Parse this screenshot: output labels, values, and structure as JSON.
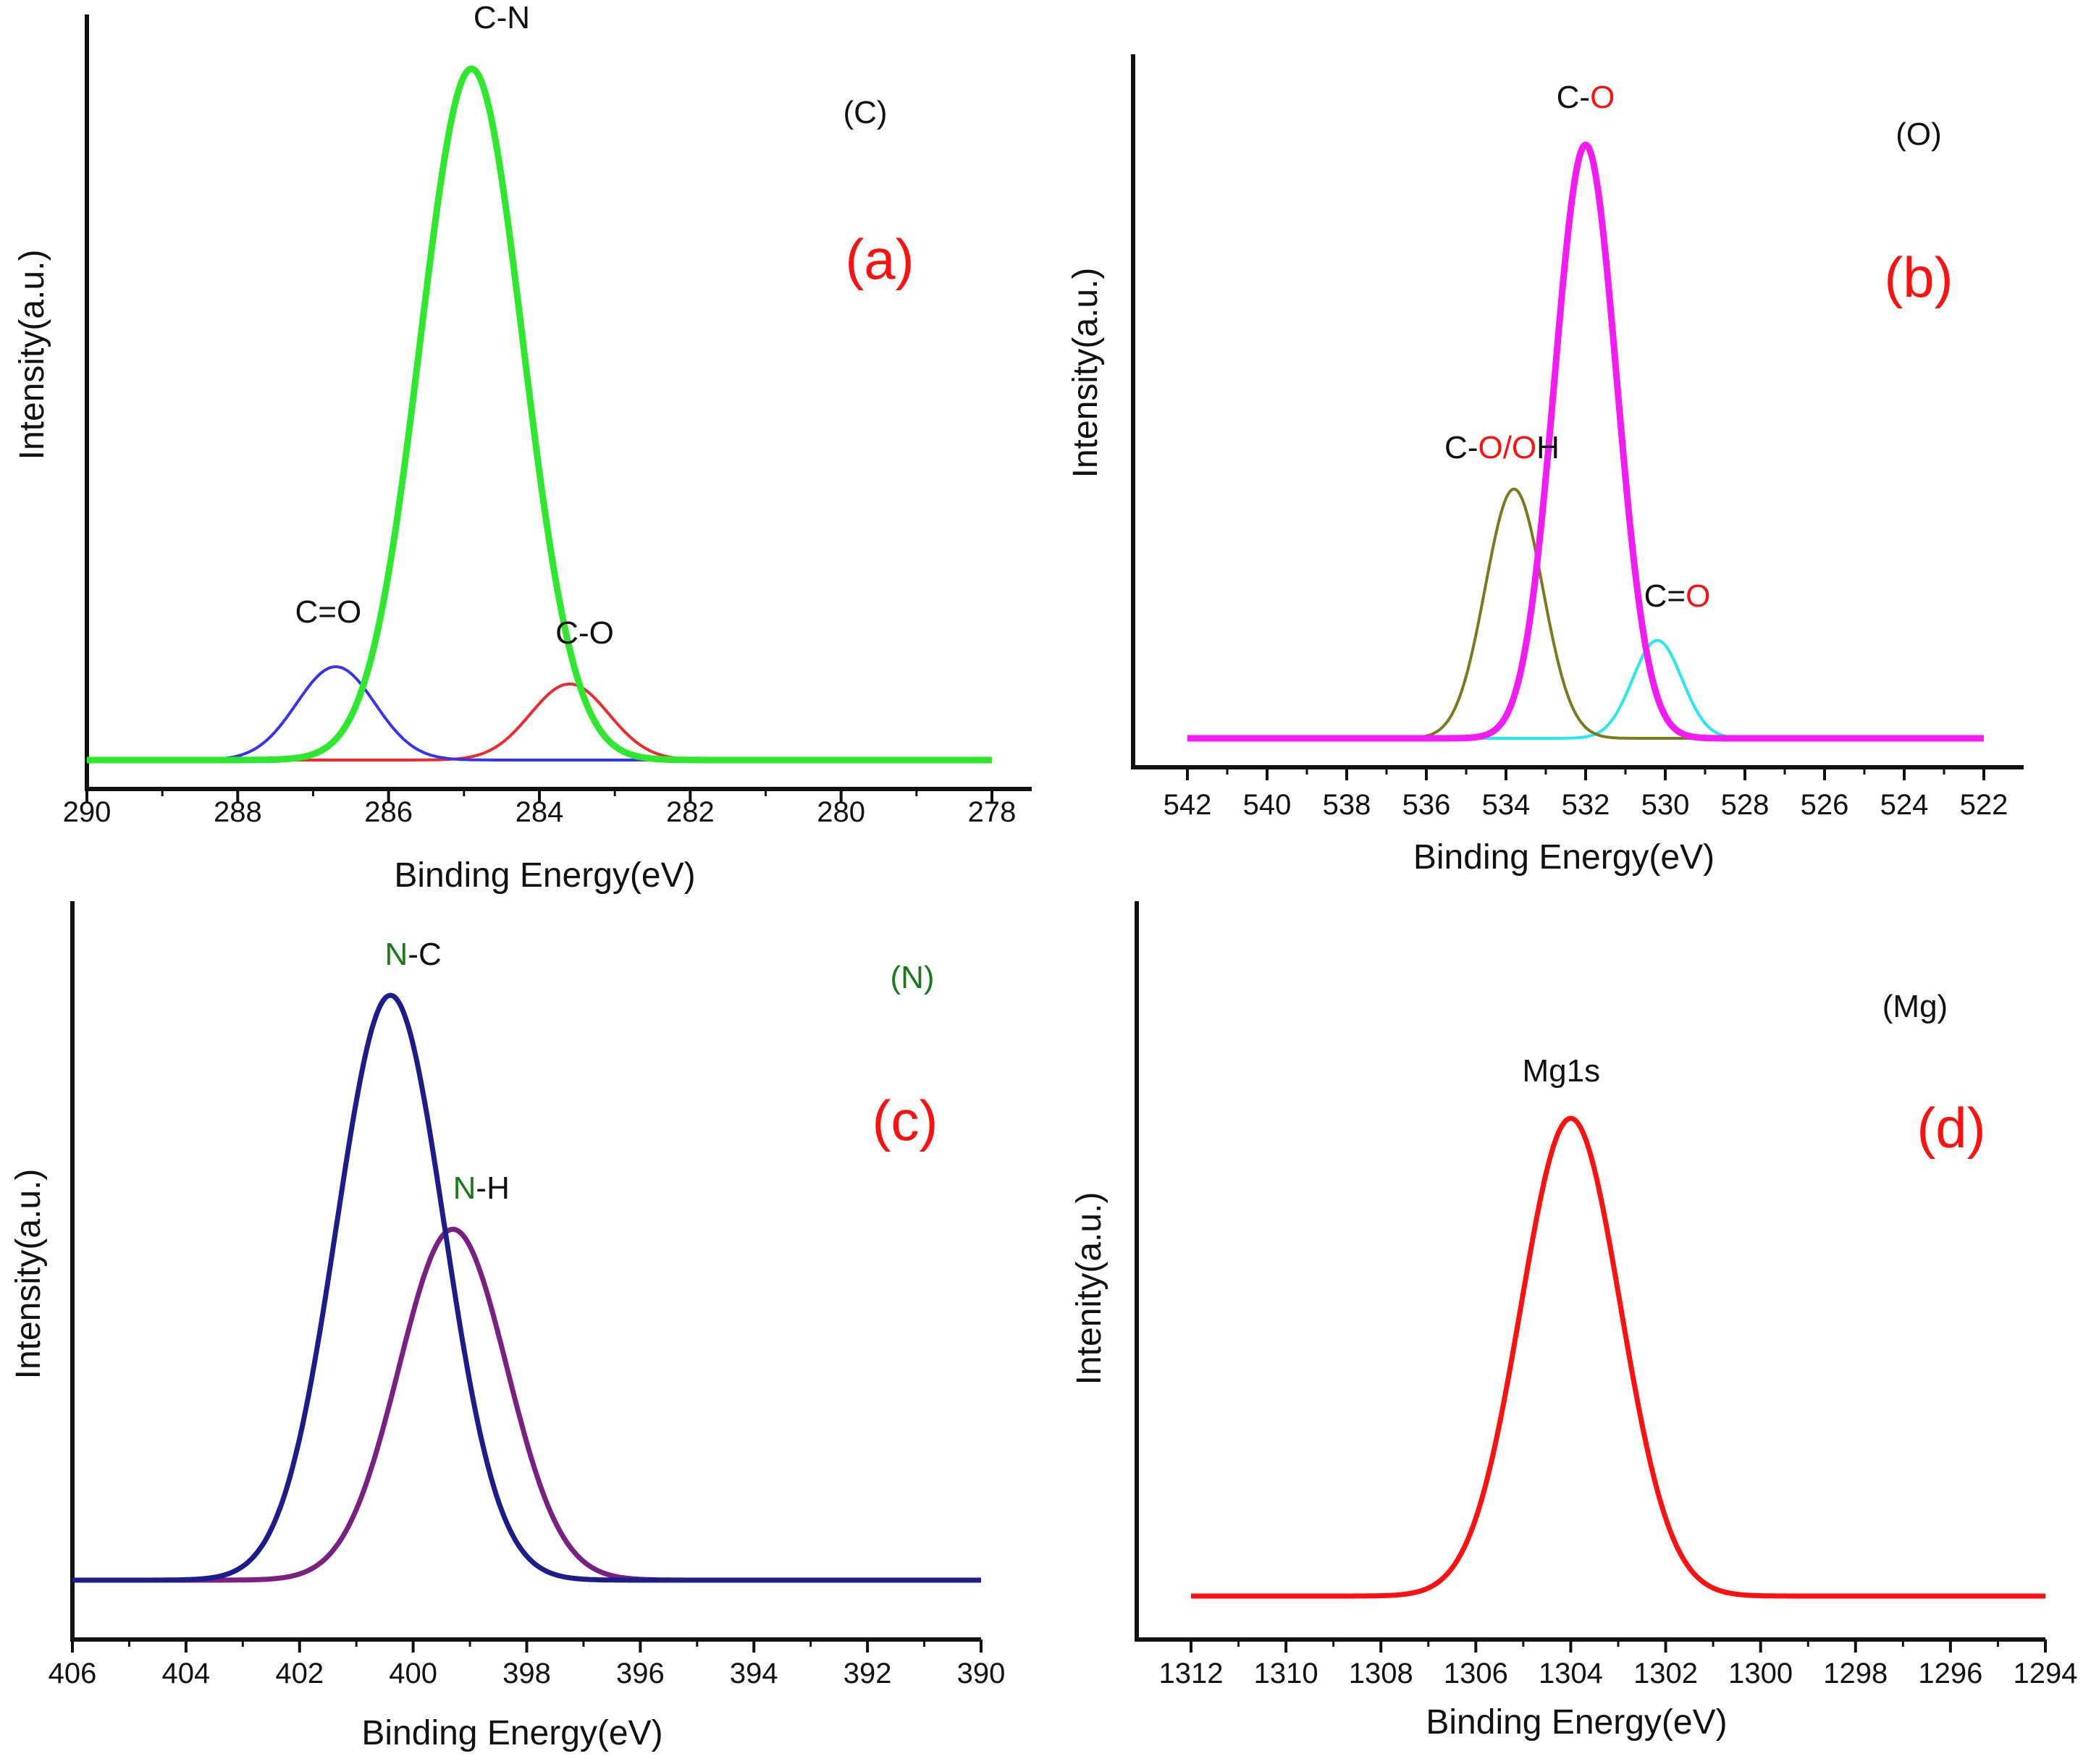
{
  "colors": {
    "axis": "#111111",
    "red_label": "#ff1010",
    "green_label": "#1a7a1a"
  },
  "chart_data": [
    {
      "panel": "a",
      "panel_label": "(a)",
      "element_label": "(C)",
      "type": "line",
      "xlabel": "Binding Energy(eV)",
      "ylabel": "Intensity(a.u.)",
      "xlim": [
        290,
        278
      ],
      "ylim": [
        0,
        1.06
      ],
      "x_ticks": [
        "290",
        "288",
        "286",
        "284",
        "282",
        "280",
        "278"
      ],
      "grid": false,
      "series": [
        {
          "name": "C-N",
          "color": "#2ee82e",
          "width": 9,
          "center": 284.9,
          "sigma": 0.68,
          "amplitude": 1.0
        },
        {
          "name": "C=O",
          "color": "#3535ee",
          "width": 4,
          "center": 286.7,
          "sigma": 0.52,
          "amplitude": 0.135
        },
        {
          "name": "C-O",
          "color": "#ee2a2a",
          "width": 4,
          "center": 283.6,
          "sigma": 0.52,
          "amplitude": 0.11
        }
      ],
      "annotations": [
        {
          "parts": [
            {
              "text": "C-N",
              "color": "#111111"
            }
          ],
          "x": 284.5,
          "y": 1.04
        },
        {
          "parts": [
            {
              "text": "C=O",
              "color": "#111111"
            }
          ],
          "x": 286.8,
          "y": 0.18
        },
        {
          "parts": [
            {
              "text": "C-O",
              "color": "#111111"
            }
          ],
          "x": 283.4,
          "y": 0.15
        }
      ]
    },
    {
      "panel": "b",
      "panel_label": "(b)",
      "element_label": "(O)",
      "type": "line",
      "xlabel": "Binding Energy(eV)",
      "ylabel": "Intensity(a.u.)",
      "xlim": [
        543,
        522
      ],
      "ylim": [
        0,
        1.2
      ],
      "x_ticks": [
        "542",
        "540",
        "538",
        "536",
        "534",
        "532",
        "530",
        "528",
        "526",
        "524",
        "522"
      ],
      "grid": false,
      "series": [
        {
          "name": "C-O",
          "color": "#f21bf2",
          "width": 9,
          "center": 532.0,
          "sigma": 0.78,
          "amplitude": 1.0
        },
        {
          "name": "C-O/OH",
          "color": "#7a7a1e",
          "width": 4,
          "center": 533.8,
          "sigma": 0.72,
          "amplitude": 0.42
        },
        {
          "name": "C=O",
          "color": "#25e8f0",
          "width": 4,
          "center": 530.2,
          "sigma": 0.62,
          "amplitude": 0.165
        }
      ],
      "annotations": [
        {
          "parts": [
            {
              "text": "C-",
              "color": "#111111"
            },
            {
              "text": "O",
              "color": "#ff1010"
            }
          ],
          "x": 532.0,
          "y": 1.04
        },
        {
          "parts": [
            {
              "text": "C-",
              "color": "#111111"
            },
            {
              "text": "O/O",
              "color": "#ff1010"
            },
            {
              "text": "H",
              "color": "#111111"
            }
          ],
          "x": 534.1,
          "y": 0.45
        },
        {
          "parts": [
            {
              "text": "C=",
              "color": "#111111"
            },
            {
              "text": "O",
              "color": "#ff1010"
            }
          ],
          "x": 529.7,
          "y": 0.2
        }
      ]
    },
    {
      "panel": "c",
      "panel_label": "(c)",
      "element_label_parts": [
        {
          "text": "(",
          "color": "#1a7a1a"
        },
        {
          "text": "N",
          "color": "#1a7a1a"
        },
        {
          "text": ")",
          "color": "#1a7a1a"
        }
      ],
      "type": "line",
      "xlabel": "Binding Energy(eV)",
      "ylabel": "Intensity(a.u.)",
      "xlim": [
        406,
        390
      ],
      "ylim": [
        0,
        1.08
      ],
      "x_ticks": [
        "406",
        "404",
        "402",
        "400",
        "398",
        "396",
        "394",
        "392",
        "390"
      ],
      "grid": false,
      "series": [
        {
          "name": "N-C",
          "color": "#1c1c8c",
          "width": 7,
          "center": 400.4,
          "sigma": 0.95,
          "amplitude": 1.0
        },
        {
          "name": "N-H",
          "color": "#7b1f82",
          "width": 7,
          "center": 399.3,
          "sigma": 0.95,
          "amplitude": 0.6
        }
      ],
      "annotations": [
        {
          "parts": [
            {
              "text": "N",
              "color": "#1a7a1a"
            },
            {
              "text": "-C",
              "color": "#111111"
            }
          ],
          "x": 400.0,
          "y": 1.03
        },
        {
          "parts": [
            {
              "text": "N",
              "color": "#1a7a1a"
            },
            {
              "text": "-H",
              "color": "#111111"
            }
          ],
          "x": 398.8,
          "y": 0.63
        }
      ]
    },
    {
      "panel": "d",
      "panel_label": "(d)",
      "element_label": "(Mg)",
      "type": "line",
      "xlabel": "Binding Energy(eV)",
      "ylabel": "Intenity(a.u.)",
      "xlim": [
        1313,
        1294
      ],
      "ylim": [
        0,
        1.25
      ],
      "x_ticks": [
        "1312",
        "1310",
        "1308",
        "1306",
        "1304",
        "1302",
        "1300",
        "1298",
        "1296",
        "1294"
      ],
      "grid": false,
      "series": [
        {
          "name": "Mg1s",
          "color": "#ff1010",
          "width": 7,
          "center": 1304.0,
          "sigma": 1.05,
          "amplitude": 1.0
        }
      ],
      "annotations": [
        {
          "parts": [
            {
              "text": "Mg1s",
              "color": "#111111"
            }
          ],
          "x": 1304.2,
          "y": 1.05
        }
      ]
    }
  ]
}
